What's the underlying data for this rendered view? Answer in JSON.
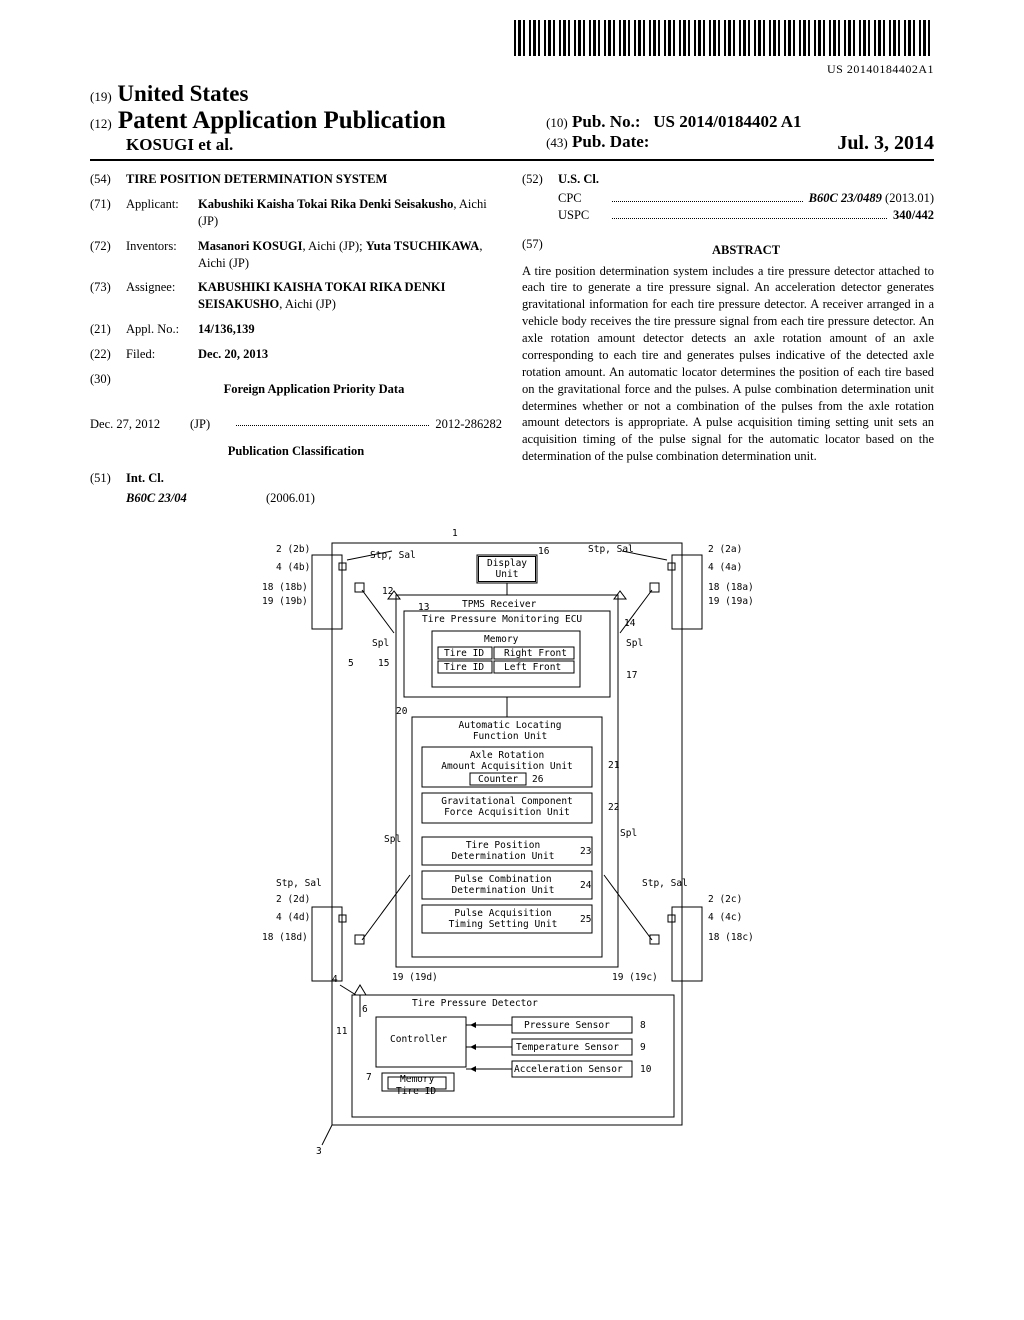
{
  "barcode_text": "US 20140184402A1",
  "header": {
    "country_code": "(19)",
    "country": "United States",
    "pub_type_code": "(12)",
    "pub_type": "Patent Application Publication",
    "authors": "KOSUGI et al.",
    "pub_no_code": "(10)",
    "pub_no_label": "Pub. No.:",
    "pub_no": "US 2014/0184402 A1",
    "pub_date_code": "(43)",
    "pub_date_label": "Pub. Date:",
    "pub_date": "Jul. 3, 2014"
  },
  "left_col": {
    "title_code": "(54)",
    "title": "TIRE POSITION DETERMINATION SYSTEM",
    "applicant_code": "(71)",
    "applicant_label": "Applicant:",
    "applicant": "Kabushiki Kaisha Tokai Rika Denki Seisakusho",
    "applicant_loc": ", Aichi (JP)",
    "inventors_code": "(72)",
    "inventors_label": "Inventors:",
    "inventors": "Masanori KOSUGI",
    "inventor1_loc": ", Aichi (JP); ",
    "inventor2": "Yuta TSUCHIKAWA",
    "inventor2_loc": ", Aichi (JP)",
    "assignee_code": "(73)",
    "assignee_label": "Assignee:",
    "assignee": "KABUSHIKI KAISHA TOKAI RIKA DENKI SEISAKUSHO",
    "assignee_loc": ", Aichi (JP)",
    "appl_code": "(21)",
    "appl_label": "Appl. No.:",
    "appl_no": "14/136,139",
    "filed_code": "(22)",
    "filed_label": "Filed:",
    "filed_date": "Dec. 20, 2013",
    "priority_code": "(30)",
    "priority_title": "Foreign Application Priority Data",
    "priority_date": "Dec. 27, 2012",
    "priority_cc": "(JP)",
    "priority_num": "2012-286282",
    "classification_title": "Publication Classification",
    "intcl_code": "(51)",
    "intcl_label": "Int. Cl.",
    "intcl_class": "B60C 23/04",
    "intcl_year": "(2006.01)"
  },
  "right_col": {
    "uscl_code": "(52)",
    "uscl_label": "U.S. Cl.",
    "cpc_label": "CPC",
    "cpc_val": "B60C 23/0489",
    "cpc_year": "(2013.01)",
    "uspc_label": "USPC",
    "uspc_val": "340/442",
    "abstract_code": "(57)",
    "abstract_label": "ABSTRACT",
    "abstract_text": "A tire position determination system includes a tire pressure detector attached to each tire to generate a tire pressure signal. An acceleration detector generates gravitational information for each tire pressure detector. A receiver arranged in a vehicle body receives the tire pressure signal from each tire pressure detector. An axle rotation amount detector detects an axle rotation amount of an axle corresponding to each tire and generates pulses indicative of the detected axle rotation amount. An automatic locator determines the position of each tire based on the gravitational force and the pulses. A pulse combination determination unit determines whether or not a combination of the pulses from the axle rotation amount detectors is appropriate. A pulse acquisition timing setting unit sets an acquisition timing of the pulse signal for the automatic locator based on the determination of the pulse combination determination unit."
  },
  "figure": {
    "labels": {
      "l1": "1",
      "l2b": "2 (2b)",
      "l2a": "2 (2a)",
      "l2c": "2 (2c)",
      "l2d": "2 (2d)",
      "l4a": "4 (4a)",
      "l4b": "4 (4b)",
      "l4c": "4 (4c)",
      "l4d": "4 (4d)",
      "l18a": "18 (18a)",
      "l18b": "18 (18b)",
      "l18c": "18 (18c)",
      "l18d": "18 (18d)",
      "l19a": "19 (19a)",
      "l19b": "19 (19b)",
      "l19c": "19 (19c)",
      "l19d": "19 (19d)",
      "l12": "12",
      "l13": "13",
      "l14": "14",
      "l15": "15",
      "l16": "16",
      "l17": "17",
      "l20": "20",
      "l21": "21",
      "l22": "22",
      "l23": "23",
      "l24": "24",
      "l25": "25",
      "l26": "26",
      "l5": "5",
      "l3": "3",
      "l4": "4",
      "l6": "6",
      "l7": "7",
      "l8": "8",
      "l9": "9",
      "l10": "10",
      "l11": "11",
      "stp": "Stp, Sal",
      "spl": "Spl"
    },
    "boxes": {
      "display": "Display\nUnit",
      "tpms": "TPMS Receiver",
      "ecu": "Tire Pressure Monitoring ECU",
      "memory": "Memory",
      "tireid_rf": "Tire ID",
      "rf": "Right Front",
      "tireid_lf": "Tire ID",
      "lf": "Left Front",
      "autoloc": "Automatic Locating\nFunction Unit",
      "axle": "Axle Rotation\nAmount Acquisition Unit",
      "counter": "Counter",
      "grav": "Gravitational Component\nForce Acquisition Unit",
      "tirepos": "Tire Position\nDetermination Unit",
      "pulsecomb": "Pulse Combination\nDetermination Unit",
      "pulseacq": "Pulse Acquisition\nTiming Setting Unit",
      "tpd": "Tire Pressure Detector",
      "controller": "Controller",
      "memory2": "Memory",
      "tireid2": "Tire ID",
      "pressure": "Pressure Sensor",
      "temp": "Temperature Sensor",
      "accel": "Acceleration Sensor"
    }
  }
}
